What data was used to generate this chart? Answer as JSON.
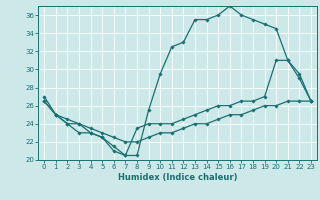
{
  "xlabel": "Humidex (Indice chaleur)",
  "bg_color": "#cce8e8",
  "grid_color": "#aaaaaa",
  "line_color": "#1a7070",
  "xlim": [
    -0.5,
    23.5
  ],
  "ylim": [
    20,
    37
  ],
  "yticks": [
    20,
    22,
    24,
    26,
    28,
    30,
    32,
    34,
    36
  ],
  "xticks": [
    0,
    1,
    2,
    3,
    4,
    5,
    6,
    7,
    8,
    9,
    10,
    11,
    12,
    13,
    14,
    15,
    16,
    17,
    18,
    19,
    20,
    21,
    22,
    23
  ],
  "line1_x": [
    0,
    1,
    2,
    3,
    4,
    5,
    6,
    7,
    8,
    9,
    10,
    11,
    12,
    13,
    14,
    15,
    16,
    17,
    18,
    19,
    20,
    21,
    22,
    23
  ],
  "line1_y": [
    27,
    25,
    24,
    24,
    23,
    22.5,
    21,
    20.5,
    20.5,
    25.5,
    29.5,
    32.5,
    33,
    35.5,
    35.5,
    36,
    37,
    36,
    35.5,
    35,
    34.5,
    31,
    29.5,
    26.5
  ],
  "line2_x": [
    0,
    1,
    2,
    3,
    4,
    5,
    6,
    7,
    8,
    9,
    10,
    11,
    12,
    13,
    14,
    15,
    16,
    17,
    18,
    19,
    20,
    21,
    22,
    23
  ],
  "line2_y": [
    26.5,
    25,
    24,
    23,
    23,
    22.5,
    21.5,
    20.5,
    23.5,
    24,
    24,
    24,
    24.5,
    25,
    25.5,
    26,
    26,
    26.5,
    26.5,
    27,
    31,
    31,
    29,
    26.5
  ],
  "line3_x": [
    0,
    1,
    2,
    3,
    4,
    5,
    6,
    7,
    8,
    9,
    10,
    11,
    12,
    13,
    14,
    15,
    16,
    17,
    18,
    19,
    20,
    21,
    22,
    23
  ],
  "line3_y": [
    26.5,
    25,
    24.5,
    24,
    23.5,
    23,
    22.5,
    22,
    22,
    22.5,
    23,
    23,
    23.5,
    24,
    24,
    24.5,
    25,
    25,
    25.5,
    26,
    26,
    26.5,
    26.5,
    26.5
  ],
  "marker_size": 1.8,
  "line_width": 0.9,
  "tick_fontsize": 5.0,
  "xlabel_fontsize": 6.0
}
